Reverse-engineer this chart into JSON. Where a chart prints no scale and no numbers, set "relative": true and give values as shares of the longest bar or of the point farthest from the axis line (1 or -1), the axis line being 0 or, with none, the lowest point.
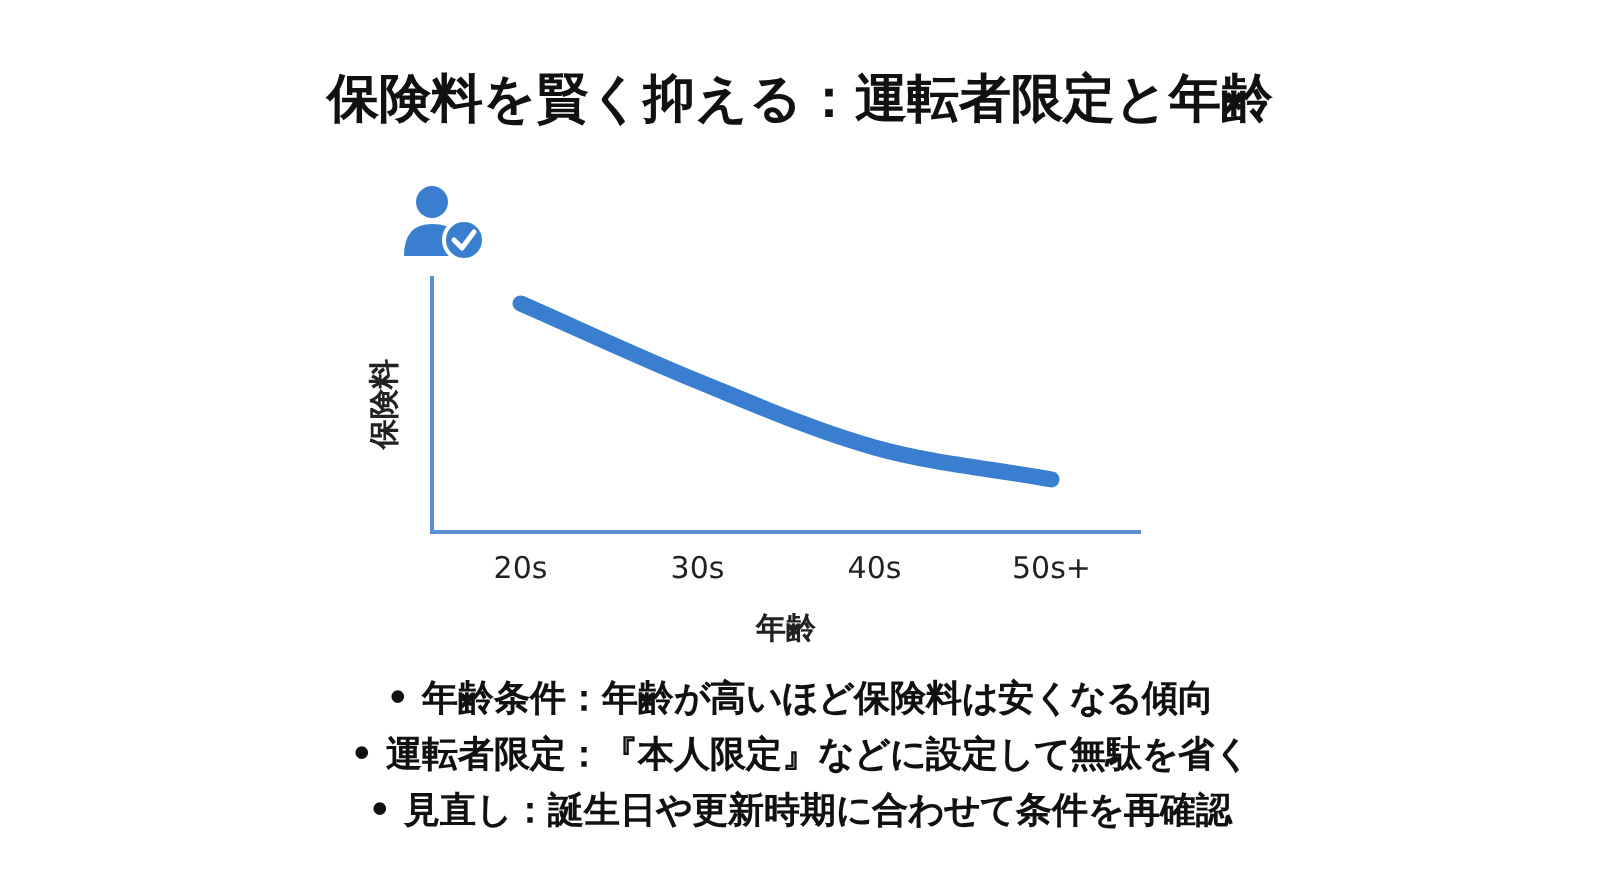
{
  "chart_data": {
    "type": "line",
    "title": "保険料を賢く抑える：運転者限定と年齢",
    "xlabel": "年齢",
    "ylabel": "保険料",
    "categories": [
      "20s",
      "30s",
      "40s",
      "50s+"
    ],
    "series": [
      {
        "color": "#3a7fcf",
        "values": [
          1,
          0.66,
          0.37,
          0.23
        ]
      }
    ],
    "relative": true,
    "marker": "none",
    "line_style": "solid",
    "annotations": [
      "• 年齢条件：年齢が高いほど保険料は安くなる傾向",
      "• 運転者限定：『本人限定』などに設定して無駄を省く",
      "• 見直し：誕生日や更新時期に合わせて条件を再確認"
    ]
  }
}
